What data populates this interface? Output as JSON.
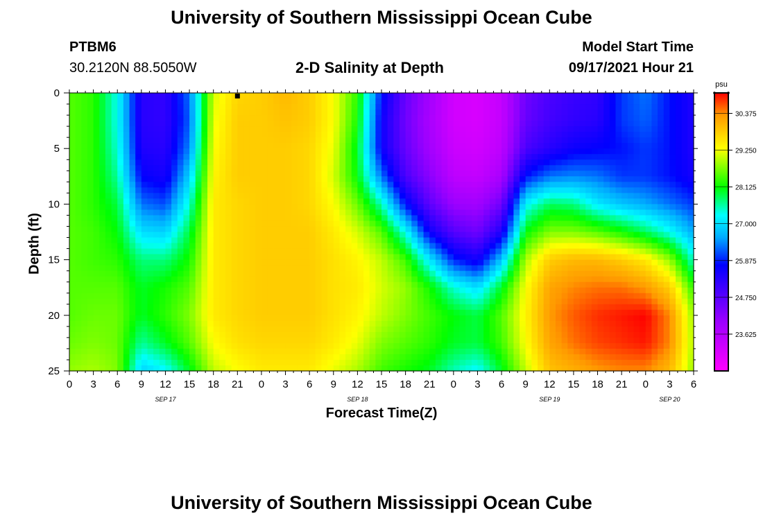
{
  "page": {
    "title_top": "University of Southern Mississippi Ocean Cube",
    "title_bottom": "University of Southern Mississippi Ocean Cube",
    "station_id": "PTBM6",
    "station_coords": "30.2120N  88.5050W",
    "plot_title": "2-D Salinity at Depth",
    "model_start_label": "Model Start Time",
    "model_start_value": "09/17/2021 Hour 21"
  },
  "chart_data": {
    "type": "heatmap",
    "title": "2-D Salinity at Depth",
    "xlabel": "Forecast Time(Z)",
    "ylabel": "Depth (ft)",
    "colorbar_unit": "psu",
    "x_ticks": [
      "0",
      "3",
      "6",
      "9",
      "12",
      "15",
      "18",
      "21",
      "0",
      "3",
      "6",
      "9",
      "12",
      "15",
      "18",
      "21",
      "0",
      "3",
      "6",
      "9",
      "12",
      "15",
      "18",
      "21",
      "0",
      "3",
      "6"
    ],
    "date_labels": [
      {
        "label": "SEP 17",
        "tick_index": 4
      },
      {
        "label": "SEP 18",
        "tick_index": 12
      },
      {
        "label": "SEP 19",
        "tick_index": 20
      },
      {
        "label": "SEP 20",
        "tick_index": 25
      }
    ],
    "y_ticks": [
      0,
      5,
      10,
      15,
      20,
      25
    ],
    "ylim": [
      0,
      25
    ],
    "colorbar_ticks": [
      "30.375",
      "29.250",
      "28.125",
      "27.000",
      "25.875",
      "24.750",
      "23.625"
    ],
    "colorbar_range": [
      22.5,
      31.0
    ],
    "current_time_marker": {
      "tick_index": 7,
      "depth": 0
    },
    "depth_rows": [
      0,
      2.5,
      5,
      7.5,
      10,
      12.5,
      15,
      17.5,
      20,
      22.5,
      25
    ],
    "columns": [
      {
        "tick_index": 0,
        "values": [
          28.5,
          28.5,
          28.5,
          28.5,
          28.5,
          28.5,
          28.5,
          28.5,
          28.5,
          28.6,
          28.8
        ]
      },
      {
        "tick_index": 1,
        "values": [
          28.3,
          28.3,
          28.3,
          28.3,
          28.3,
          28.4,
          28.4,
          28.5,
          28.6,
          28.7,
          28.9
        ]
      },
      {
        "tick_index": 2,
        "values": [
          27.3,
          27.3,
          27.4,
          27.6,
          27.9,
          28.1,
          28.3,
          28.5,
          28.6,
          28.6,
          28.7
        ]
      },
      {
        "tick_index": 3,
        "values": [
          25.3,
          25.3,
          25.4,
          25.7,
          26.3,
          27.0,
          27.7,
          28.0,
          28.0,
          27.6,
          26.9
        ]
      },
      {
        "tick_index": 4,
        "values": [
          25.2,
          25.2,
          25.3,
          25.5,
          26.1,
          26.9,
          27.7,
          28.2,
          28.3,
          28.0,
          27.2
        ]
      },
      {
        "tick_index": 5,
        "values": [
          26.3,
          26.2,
          26.4,
          26.9,
          27.4,
          27.9,
          28.2,
          28.5,
          28.7,
          28.5,
          28.0
        ]
      },
      {
        "tick_index": 6,
        "values": [
          29.1,
          29.2,
          29.3,
          29.4,
          29.5,
          29.5,
          29.5,
          29.5,
          29.5,
          29.3,
          29.0
        ]
      },
      {
        "tick_index": 7,
        "values": [
          29.7,
          29.8,
          29.8,
          29.8,
          29.7,
          29.7,
          29.7,
          29.7,
          29.7,
          29.6,
          29.3
        ]
      },
      {
        "tick_index": 8,
        "values": [
          29.8,
          29.8,
          29.8,
          29.8,
          29.8,
          29.8,
          29.8,
          29.8,
          29.8,
          29.7,
          29.5
        ]
      },
      {
        "tick_index": 9,
        "values": [
          30.0,
          29.9,
          29.8,
          29.8,
          29.8,
          29.8,
          29.8,
          29.8,
          29.8,
          29.7,
          29.5
        ]
      },
      {
        "tick_index": 10,
        "values": [
          29.8,
          29.8,
          29.7,
          29.7,
          29.7,
          29.8,
          29.8,
          29.8,
          29.8,
          29.7,
          29.5
        ]
      },
      {
        "tick_index": 11,
        "values": [
          29.3,
          29.3,
          29.2,
          29.1,
          29.3,
          29.5,
          29.6,
          29.6,
          29.6,
          29.5,
          29.2
        ]
      },
      {
        "tick_index": 12,
        "values": [
          28.3,
          28.2,
          28.0,
          28.1,
          28.6,
          29.1,
          29.4,
          29.5,
          29.4,
          29.2,
          28.9
        ]
      },
      {
        "tick_index": 13,
        "values": [
          25.8,
          25.6,
          25.6,
          26.3,
          27.5,
          28.5,
          29.0,
          29.1,
          29.0,
          28.7,
          28.4
        ]
      },
      {
        "tick_index": 14,
        "values": [
          24.6,
          24.5,
          24.6,
          24.9,
          25.8,
          27.3,
          28.4,
          28.8,
          28.7,
          28.5,
          28.2
        ]
      },
      {
        "tick_index": 15,
        "values": [
          23.9,
          23.8,
          23.9,
          24.2,
          24.7,
          25.6,
          27.1,
          28.2,
          28.4,
          28.3,
          28.0
        ]
      },
      {
        "tick_index": 16,
        "values": [
          23.2,
          23.2,
          23.3,
          23.5,
          24.0,
          24.8,
          25.9,
          27.4,
          28.1,
          28.0,
          27.5
        ]
      },
      {
        "tick_index": 17,
        "values": [
          23.1,
          23.1,
          23.2,
          23.4,
          23.9,
          24.5,
          25.5,
          27.0,
          27.9,
          27.9,
          27.2
        ]
      },
      {
        "tick_index": 18,
        "values": [
          23.4,
          23.4,
          23.5,
          23.8,
          24.5,
          25.4,
          26.8,
          28.0,
          28.5,
          28.4,
          28.0
        ]
      },
      {
        "tick_index": 19,
        "values": [
          24.5,
          24.6,
          24.9,
          25.8,
          27.2,
          28.1,
          28.9,
          29.3,
          29.4,
          29.3,
          29.0
        ]
      },
      {
        "tick_index": 20,
        "values": [
          24.9,
          25.0,
          25.3,
          26.3,
          27.8,
          28.7,
          29.8,
          30.2,
          30.3,
          30.2,
          29.9
        ]
      },
      {
        "tick_index": 21,
        "values": [
          25.1,
          25.2,
          25.6,
          26.4,
          27.7,
          28.7,
          30.0,
          30.4,
          30.6,
          30.5,
          30.1
        ]
      },
      {
        "tick_index": 22,
        "values": [
          25.2,
          25.3,
          25.7,
          26.3,
          27.1,
          28.5,
          30.0,
          30.5,
          30.8,
          30.7,
          30.3
        ]
      },
      {
        "tick_index": 23,
        "values": [
          26.0,
          26.0,
          25.8,
          26.0,
          26.8,
          28.2,
          29.8,
          30.5,
          30.9,
          30.8,
          30.4
        ]
      },
      {
        "tick_index": 24,
        "values": [
          26.3,
          26.2,
          26.0,
          26.0,
          26.6,
          27.8,
          29.5,
          30.3,
          31.0,
          30.9,
          30.4
        ]
      },
      {
        "tick_index": 25,
        "values": [
          25.8,
          25.8,
          25.8,
          25.8,
          26.3,
          27.3,
          28.8,
          29.8,
          30.4,
          30.4,
          30.0
        ]
      },
      {
        "tick_index": 26,
        "values": [
          25.4,
          25.4,
          25.4,
          25.5,
          26.0,
          26.6,
          27.4,
          28.3,
          28.8,
          28.9,
          28.8
        ]
      }
    ]
  }
}
